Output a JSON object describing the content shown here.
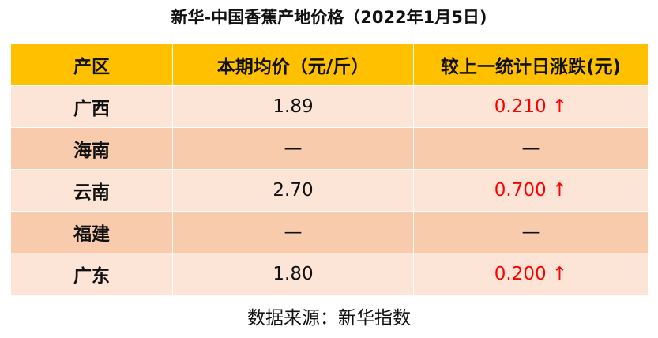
{
  "header": {
    "title": "新华-中国香蕉产地价格（2022年1月5日)"
  },
  "table": {
    "columns": [
      "产区",
      "本期均价（元/斤）",
      "较上一统计日涨跌(元)"
    ],
    "rows": [
      [
        "广西",
        "1.89",
        "0.210 ↑"
      ],
      [
        "海南",
        "—",
        "—"
      ],
      [
        "云南",
        "2.70",
        "0.700 ↑"
      ],
      [
        "福建",
        "—",
        "—"
      ],
      [
        "广东",
        "1.80",
        "0.200 ↑"
      ]
    ]
  },
  "footer": {
    "source": "数据来源：新华指数"
  }
}
